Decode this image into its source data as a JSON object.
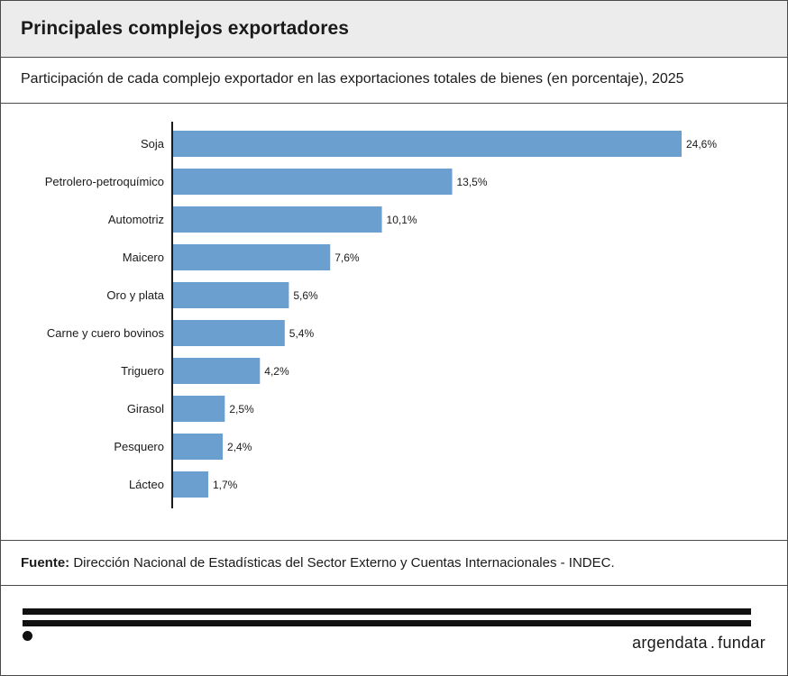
{
  "header": {
    "title": "Principales complejos exportadores"
  },
  "subtitle": "Participación de cada complejo exportador en las exportaciones totales de bienes (en porcentaje), 2025",
  "source": {
    "label": "Fuente:",
    "text": "Dirección Nacional de Estadísticas del Sector Externo y Cuentas Internacionales - INDEC."
  },
  "brand": {
    "left": "argendata",
    "separator": ".",
    "right": "fundar"
  },
  "colors": {
    "bar": "#6b9fd0",
    "header_bg": "#ececec",
    "border": "#4a4a4a"
  },
  "chart_data": {
    "type": "bar",
    "orientation": "horizontal",
    "categories": [
      "Soja",
      "Petrolero-petroquímico",
      "Automotriz",
      "Maicero",
      "Oro y plata",
      "Carne y cuero bovinos",
      "Triguero",
      "Girasol",
      "Pesquero",
      "Lácteo"
    ],
    "values": [
      24.6,
      13.5,
      10.1,
      7.6,
      5.6,
      5.4,
      4.2,
      2.5,
      2.4,
      1.7
    ],
    "value_labels": [
      "24,6%",
      "13,5%",
      "10,1%",
      "7,6%",
      "5,6%",
      "5,4%",
      "4,2%",
      "2,5%",
      "2,4%",
      "1,7%"
    ],
    "xlim": [
      0,
      24.6
    ],
    "grid": false,
    "legend": "none"
  }
}
